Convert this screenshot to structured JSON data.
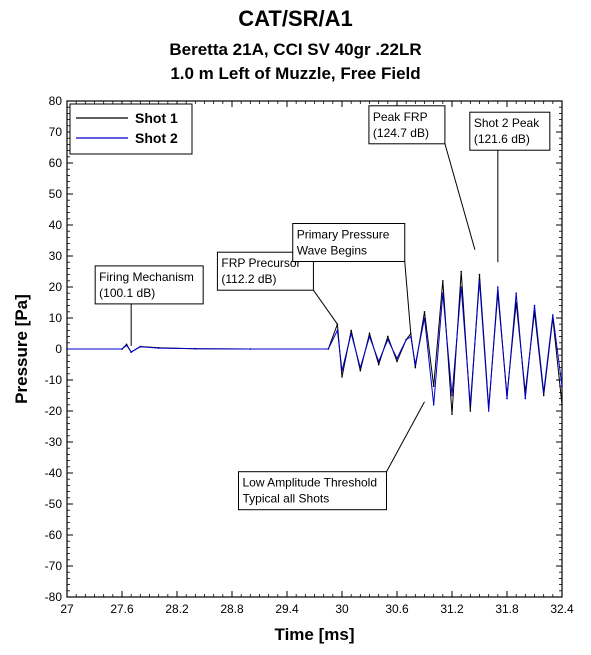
{
  "chart_data": {
    "type": "line",
    "title": "CAT/SR/A1",
    "subtitle_1": "Beretta 21A, CCI SV 40gr .22LR",
    "subtitle_2": "1.0 m Left of Muzzle, Free Field",
    "xlabel": "Time [ms]",
    "ylabel": "Pressure [Pa]",
    "xlim": [
      27,
      32.4
    ],
    "ylim": [
      -80,
      80
    ],
    "x_ticks": [
      "27",
      "27.6",
      "28.2",
      "28.8",
      "29.4",
      "30",
      "30.6",
      "31.2",
      "31.8",
      "32.4"
    ],
    "y_ticks": [
      "80",
      "70",
      "60",
      "50",
      "40",
      "30",
      "20",
      "10",
      "0",
      "-10",
      "-20",
      "-30",
      "-40",
      "-50",
      "-60",
      "-70",
      "-80"
    ],
    "grid": false,
    "legend": "top-left",
    "series": [
      {
        "name": "Shot 1",
        "color": "#000000",
        "x": [
          27.0,
          27.6,
          27.65,
          27.7,
          27.8,
          28.0,
          28.4,
          29.0,
          29.85,
          29.95,
          30.0,
          30.1,
          30.2,
          30.3,
          30.4,
          30.5,
          30.6,
          30.7,
          30.75,
          30.8,
          30.9,
          31.0,
          31.1,
          31.2,
          31.3,
          31.4,
          31.5,
          31.6,
          31.7,
          31.8,
          31.9,
          32.0,
          32.1,
          32.2,
          32.3,
          32.4
        ],
        "y": [
          0.0,
          0.0,
          1.5,
          -1.0,
          0.8,
          0.4,
          0.1,
          0.0,
          0.0,
          8.0,
          -9.0,
          6.0,
          -7.0,
          5.0,
          -5.0,
          4.0,
          -4.0,
          3.0,
          5.0,
          -6.0,
          12.0,
          -12.0,
          22.0,
          -21.0,
          25.0,
          -20.0,
          24.0,
          -19.0,
          18.0,
          -15.0,
          15.0,
          -14.0,
          12.0,
          -15.0,
          10.0,
          -18.0
        ]
      },
      {
        "name": "Shot 2",
        "color": "#0000cc",
        "x": [
          27.0,
          27.6,
          27.65,
          27.7,
          27.8,
          28.0,
          28.4,
          29.0,
          29.85,
          29.95,
          30.0,
          30.1,
          30.2,
          30.3,
          30.4,
          30.5,
          30.6,
          30.7,
          30.75,
          30.8,
          30.9,
          31.0,
          31.1,
          31.2,
          31.3,
          31.4,
          31.5,
          31.6,
          31.7,
          31.8,
          31.9,
          32.0,
          32.1,
          32.2,
          32.3,
          32.4
        ],
        "y": [
          0.0,
          0.0,
          1.2,
          -1.0,
          0.7,
          0.3,
          0.1,
          0.0,
          0.0,
          6.0,
          -7.0,
          5.0,
          -6.0,
          4.0,
          -4.0,
          3.0,
          -3.0,
          3.0,
          4.0,
          -5.0,
          10.0,
          -18.0,
          18.0,
          -15.0,
          20.0,
          -18.0,
          22.0,
          -20.0,
          20.0,
          -16.0,
          18.0,
          -16.0,
          14.0,
          -14.0,
          11.0,
          -12.0
        ]
      }
    ],
    "annotations": [
      {
        "line1": "Firing Mechanism",
        "line2": "(100.1 dB)",
        "x": 27.7,
        "y": 1.0
      },
      {
        "line1": "FRP Precursor",
        "line2": "(112.2 dB)",
        "x": 29.95,
        "y": 8.0
      },
      {
        "line1": "Primary Pressure",
        "line2": "Wave Begins",
        "x": 30.75,
        "y": 5.0
      },
      {
        "line1": "Peak FRP",
        "line2": "(124.7 dB)",
        "x": 31.45,
        "y": 32.0
      },
      {
        "line1": "Shot 2 Peak",
        "line2": "(121.6 dB)",
        "x": 31.7,
        "y": 28.0
      },
      {
        "line1": "Low Amplitude Threshold",
        "line2": "Typical all Shots",
        "x": 30.9,
        "y": -17.0
      }
    ]
  }
}
